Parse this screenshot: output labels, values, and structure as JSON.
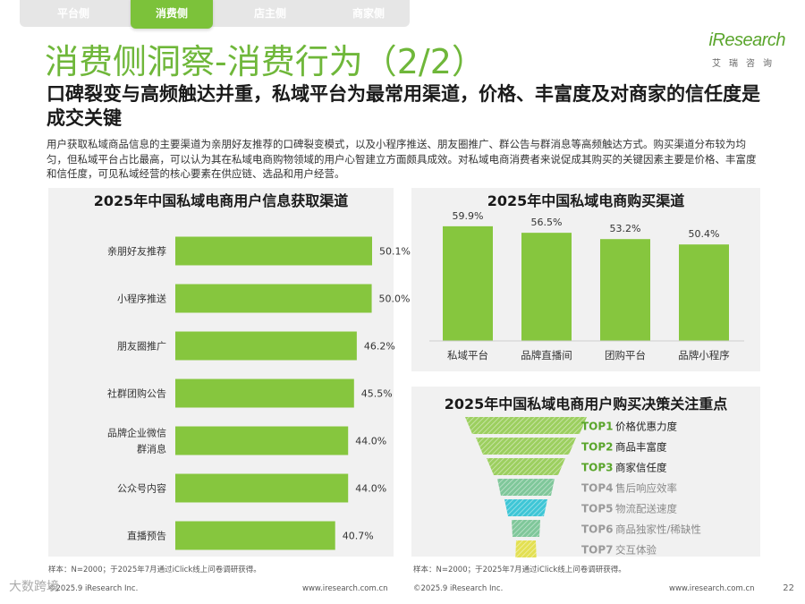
{
  "nav": {
    "tabs": [
      {
        "label": "平台侧",
        "active": false
      },
      {
        "label": "消费侧",
        "active": true
      },
      {
        "label": "店主侧",
        "active": false
      },
      {
        "label": "商家侧",
        "active": false
      }
    ]
  },
  "brand": {
    "logo_text": "iResearch",
    "logo_cn": "艾瑞咨询",
    "accent": "#7cc23a"
  },
  "page": {
    "title": "消费侧洞察-消费行为（2/2）",
    "subtitle": "口碑裂变与高频触达并重，私域平台为最常用渠道，价格、丰富度及对商家的信任度是成交关键",
    "body": "用户获取私域商品信息的主要渠道为亲朋好友推荐的口碑裂变模式，以及小程序推送、朋友圈推广、群公告与群消息等高频触达方式。购买渠道分布较为均匀，但私域平台占比最高，可以认为其在私域电商购物领域的用户心智建立方面颇具成效。对私域电商消费者来说促成其购买的关键因素主要是价格、丰富度和信任度，可见私域经营的核心要素在供应链、选品和用户经营。",
    "page_number": "22"
  },
  "footer": {
    "left_note": "样本：N=2000；于2025年7月通过iClick线上问卷调研获得。",
    "right_note": "样本：N=2000；于2025年7月通过iClick线上问卷调研获得。",
    "left_copyright": "©2025.9 iResearch Inc.",
    "left_site": "www.iresearch.com.cn",
    "right_copyright": "©2025.9 iResearch Inc.",
    "right_site": "www.iresearch.com.cn",
    "watermark": "大数跨境"
  },
  "chart_data": [
    {
      "type": "bar",
      "orientation": "horizontal",
      "title": "2025年中国私域电商用户信息获取渠道",
      "categories": [
        "亲朋好友推荐",
        "小程序推送",
        "朋友圈推广",
        "社群团购公告",
        "品牌企业微信群消息",
        "公众号内容",
        "直播预告"
      ],
      "category_lines": [
        [
          "亲朋好友推荐"
        ],
        [
          "小程序推送"
        ],
        [
          "朋友圈推广"
        ],
        [
          "社群团购公告"
        ],
        [
          "品牌企业微信",
          "群消息"
        ],
        [
          "公众号内容"
        ],
        [
          "直播预告"
        ]
      ],
      "values": [
        50.1,
        50.0,
        46.2,
        45.5,
        44.0,
        44.0,
        40.7
      ],
      "labels": [
        "50.1%",
        "50.0%",
        "46.2%",
        "45.5%",
        "44.0%",
        "44.0%",
        "40.7%"
      ],
      "unit": "%",
      "xlim": [
        0,
        60
      ],
      "color": "#86c63e"
    },
    {
      "type": "bar",
      "orientation": "vertical",
      "title": "2025年中国私域电商购买渠道",
      "categories": [
        "私域平台",
        "品牌直播间",
        "团购平台",
        "品牌小程序"
      ],
      "values": [
        59.9,
        56.5,
        53.2,
        50.4
      ],
      "labels": [
        "59.9%",
        "56.5%",
        "53.2%",
        "50.4%"
      ],
      "unit": "%",
      "ylim": [
        0,
        80
      ],
      "color": "#86c63e"
    },
    {
      "type": "funnel",
      "title": "2025年中国私域电商用户购买决策关注重点",
      "ranks": [
        "TOP1",
        "TOP2",
        "TOP3",
        "TOP4",
        "TOP5",
        "TOP6",
        "TOP7"
      ],
      "items": [
        "价格优惠力度",
        "商品丰富度",
        "商家信任度",
        "售后响应效率",
        "物流配送速度",
        "商品独家性/稀缺性",
        "交互体验"
      ],
      "highlighted_count": 3,
      "colors": [
        "#9ccf5f",
        "#9ccf5f",
        "#9ccf5f",
        "#7fc79a",
        "#3ec6d6",
        "#7fc79a",
        "#e3e052"
      ]
    }
  ]
}
